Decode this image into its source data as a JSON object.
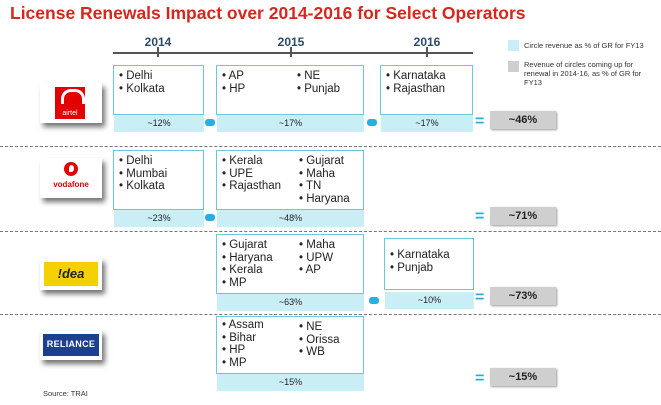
{
  "title": "License Renewals Impact over 2014-2016 for Select Operators",
  "source": "Source: TRAI",
  "years": [
    "2014",
    "2015",
    "2016"
  ],
  "legend": [
    {
      "label": "Circle revenue as % of GR for FY13",
      "color": "#c9eef6"
    },
    {
      "label": "Revenue of circles coming up for renewal in 2014-16, as % of GR for FY13",
      "color": "#cfcfcf"
    }
  ],
  "operators": [
    {
      "name": "airtel",
      "logo_text": "airtel",
      "logo_color": "#e40000",
      "y2014": {
        "circles": [
          "Delhi",
          "Kolkata"
        ],
        "pct": "~12%"
      },
      "y2015": {
        "col1": [
          "AP",
          "HP"
        ],
        "col2": [
          "NE",
          "Punjab"
        ],
        "pct": "~17%"
      },
      "y2016": {
        "circles": [
          "Karnataka",
          "Rajasthan"
        ],
        "pct": "~17%"
      },
      "total": "~46%"
    },
    {
      "name": "vodafone",
      "logo_text": "vodafone",
      "logo_color": "#e60000",
      "y2014": {
        "circles": [
          "Delhi",
          "Mumbai",
          "Kolkata"
        ],
        "pct": "~23%"
      },
      "y2015": {
        "col1": [
          "Kerala",
          "UPE",
          "Rajasthan"
        ],
        "col2": [
          "Gujarat",
          "Maha",
          "TN",
          "Haryana"
        ],
        "pct": "~48%"
      },
      "total": "~71%"
    },
    {
      "name": "idea",
      "logo_text": "!dea",
      "logo_color": "#f5d000",
      "y2015": {
        "col1": [
          "Gujarat",
          "Haryana",
          "Kerala",
          "MP"
        ],
        "col2": [
          "Maha",
          "UPW",
          "AP"
        ],
        "pct": "~63%"
      },
      "y2016": {
        "circles": [
          "Karnataka",
          "Punjab"
        ],
        "pct": "~10%"
      },
      "total": "~73%"
    },
    {
      "name": "reliance",
      "logo_text": "RELIANCE",
      "logo_color": "#1c3f8f",
      "y2015": {
        "col1": [
          "Assam",
          "Bihar",
          "HP",
          "MP"
        ],
        "col2": [
          "NE",
          "Orissa",
          "WB"
        ],
        "pct": "~15%"
      },
      "total": "~15%"
    }
  ],
  "chart_data": {
    "type": "table",
    "title": "License Renewals Impact over 2014-2016 for Select Operators",
    "columns": [
      "2014",
      "2015",
      "2016"
    ],
    "rows": [
      {
        "operator": "airtel",
        "2014": [
          "Delhi",
          "Kolkata"
        ],
        "2014_pct": 12,
        "2015": [
          "AP",
          "HP",
          "NE",
          "Punjab"
        ],
        "2015_pct": 17,
        "2016": [
          "Karnataka",
          "Rajasthan"
        ],
        "2016_pct": 17,
        "total_pct": 46
      },
      {
        "operator": "vodafone",
        "2014": [
          "Delhi",
          "Mumbai",
          "Kolkata"
        ],
        "2014_pct": 23,
        "2015": [
          "Kerala",
          "UPE",
          "Rajasthan",
          "Gujarat",
          "Maha",
          "TN",
          "Haryana"
        ],
        "2015_pct": 48,
        "total_pct": 71
      },
      {
        "operator": "idea",
        "2015": [
          "Gujarat",
          "Haryana",
          "Kerala",
          "MP",
          "Maha",
          "UPW",
          "AP"
        ],
        "2015_pct": 63,
        "2016": [
          "Karnataka",
          "Punjab"
        ],
        "2016_pct": 10,
        "total_pct": 73
      },
      {
        "operator": "reliance",
        "2015": [
          "Assam",
          "Bihar",
          "HP",
          "MP",
          "NE",
          "Orissa",
          "WB"
        ],
        "2015_pct": 15,
        "total_pct": 15
      }
    ]
  }
}
